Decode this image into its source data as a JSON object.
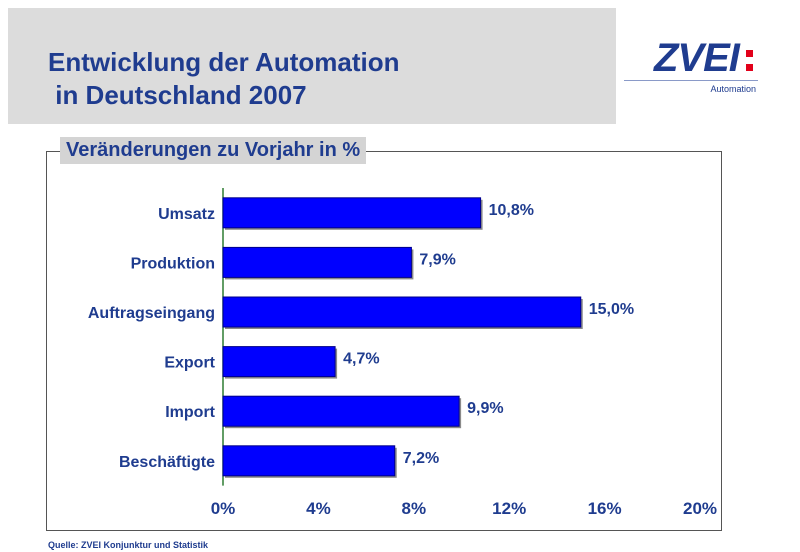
{
  "header": {
    "title_line1": "Entwicklung der Automation",
    "title_line2": " in Deutschland 2007"
  },
  "logo": {
    "word": "ZVEI",
    "sub": "Automation"
  },
  "footer": {
    "source": "Quelle: ZVEI Konjunktur und Statistik"
  },
  "colors": {
    "bar": "#0000ff",
    "title": "#1f3c8f",
    "axis": "#2e7d32",
    "logo_accent": "#e2001a"
  },
  "chart_data": {
    "type": "bar",
    "orientation": "horizontal",
    "title": "Veränderungen zu Vorjahr in %",
    "categories": [
      "Umsatz",
      "Produktion",
      "Auftragseingang",
      "Export",
      "Import",
      "Beschäftigte"
    ],
    "values": [
      10.8,
      7.9,
      15.0,
      4.7,
      9.9,
      7.2
    ],
    "value_labels": [
      "10,8%",
      "7,9%",
      "15,0%",
      "4,7%",
      "9,9%",
      "7,2%"
    ],
    "xlim": [
      0,
      20
    ],
    "xticks": [
      0,
      4,
      8,
      12,
      16,
      20
    ],
    "xtick_labels": [
      "0%",
      "4%",
      "8%",
      "12%",
      "16%",
      "20%"
    ],
    "xlabel": "",
    "ylabel": "",
    "grid": false
  }
}
